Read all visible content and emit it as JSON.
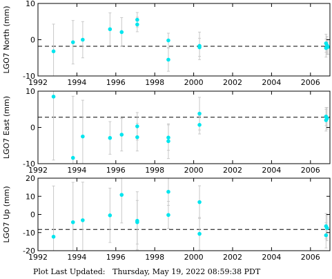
{
  "footer": {
    "label": "Plot Last Updated:",
    "timestamp": "Thursday, May 19, 2022 08:59:38 PDT"
  },
  "colors": {
    "point": "#00e5ee",
    "errorbar": "#c8c8c8",
    "axis": "#000000"
  },
  "chart_data": [
    {
      "type": "scatter",
      "ylabel": "LGO7 North (mm)",
      "xlim": [
        1992,
        2007
      ],
      "ylim": [
        -10,
        10
      ],
      "xticks": [
        1992,
        1994,
        1996,
        1998,
        2000,
        2002,
        2004,
        2006
      ],
      "yticks": [
        -10,
        0,
        10
      ],
      "reference_line": -1.8,
      "grid": false,
      "points": [
        {
          "x": 1992.8,
          "y": -3.2,
          "err": 7.5
        },
        {
          "x": 1993.8,
          "y": -0.7,
          "err": 6.0
        },
        {
          "x": 1994.3,
          "y": 0.0,
          "err": 5.0
        },
        {
          "x": 1995.7,
          "y": 2.9,
          "err": 4.5
        },
        {
          "x": 1996.3,
          "y": 2.1,
          "err": 4.0
        },
        {
          "x": 1997.1,
          "y": 5.5,
          "err": 2.0
        },
        {
          "x": 1997.1,
          "y": 4.2,
          "err": 2.0
        },
        {
          "x": 1998.7,
          "y": -0.2,
          "err": 2.0
        },
        {
          "x": 1998.7,
          "y": -5.5,
          "err": 3.2
        },
        {
          "x": 2000.3,
          "y": -1.7,
          "err": 3.8
        },
        {
          "x": 2000.3,
          "y": -2.1,
          "err": 2.5
        },
        {
          "x": 2006.8,
          "y": -1.0,
          "err": 2.5
        },
        {
          "x": 2006.85,
          "y": -1.6,
          "err": 2.5
        },
        {
          "x": 2006.8,
          "y": -2.3,
          "err": 2.5
        },
        {
          "x": 2006.9,
          "y": -2.0,
          "err": 2.0
        }
      ]
    },
    {
      "type": "scatter",
      "ylabel": "LGO7 East (mm)",
      "xlim": [
        1992,
        2007
      ],
      "ylim": [
        -10,
        10
      ],
      "xticks": [
        1992,
        1994,
        1996,
        1998,
        2000,
        2002,
        2004,
        2006
      ],
      "yticks": [
        -10,
        0,
        10
      ],
      "reference_line": 2.8,
      "grid": false,
      "points": [
        {
          "x": 1992.8,
          "y": 8.5,
          "err": 17.5
        },
        {
          "x": 1993.8,
          "y": -8.4,
          "err": 17.0
        },
        {
          "x": 1994.3,
          "y": -2.5,
          "err": 10.0
        },
        {
          "x": 1995.7,
          "y": -2.9,
          "err": 4.5
        },
        {
          "x": 1996.3,
          "y": -2.0,
          "err": 4.5
        },
        {
          "x": 1997.1,
          "y": 0.3,
          "err": 3.8
        },
        {
          "x": 1997.1,
          "y": -2.7,
          "err": 3.8
        },
        {
          "x": 1998.7,
          "y": -2.8,
          "err": 3.5
        },
        {
          "x": 1998.7,
          "y": -3.8,
          "err": 4.8
        },
        {
          "x": 2000.3,
          "y": 3.8,
          "err": 4.5
        },
        {
          "x": 2000.3,
          "y": 0.7,
          "err": 2.5
        },
        {
          "x": 2006.8,
          "y": 2.0,
          "err": 3.0
        },
        {
          "x": 2006.85,
          "y": 2.5,
          "err": 3.0
        },
        {
          "x": 2006.8,
          "y": 3.0,
          "err": 2.5
        }
      ]
    },
    {
      "type": "scatter",
      "ylabel": "LGO7 Up (mm)",
      "xlim": [
        1992,
        2007
      ],
      "ylim": [
        -20,
        20
      ],
      "xticks": [
        1992,
        1994,
        1996,
        1998,
        2000,
        2002,
        2004,
        2006
      ],
      "yticks": [
        -20,
        -10,
        0,
        10,
        20
      ],
      "reference_line": -8.3,
      "grid": false,
      "points": [
        {
          "x": 1992.8,
          "y": -12.3,
          "err": 28.0
        },
        {
          "x": 1993.8,
          "y": -4.3,
          "err": 22.0
        },
        {
          "x": 1994.3,
          "y": -3.2,
          "err": 21.0
        },
        {
          "x": 1995.7,
          "y": -0.5,
          "err": 15.0
        },
        {
          "x": 1996.3,
          "y": 10.8,
          "err": 15.5
        },
        {
          "x": 1997.1,
          "y": -3.5,
          "err": 16.0
        },
        {
          "x": 1997.1,
          "y": -4.3,
          "err": 12.0
        },
        {
          "x": 1998.7,
          "y": 12.5,
          "err": 7.5
        },
        {
          "x": 1998.7,
          "y": -0.3,
          "err": 7.5
        },
        {
          "x": 2000.3,
          "y": 6.8,
          "err": 9.0
        },
        {
          "x": 2000.3,
          "y": -10.7,
          "err": 9.0
        },
        {
          "x": 2006.8,
          "y": -6.5,
          "err": 7.0
        },
        {
          "x": 2006.85,
          "y": -7.5,
          "err": 7.0
        },
        {
          "x": 2006.8,
          "y": -11.5,
          "err": 7.0
        }
      ]
    }
  ]
}
